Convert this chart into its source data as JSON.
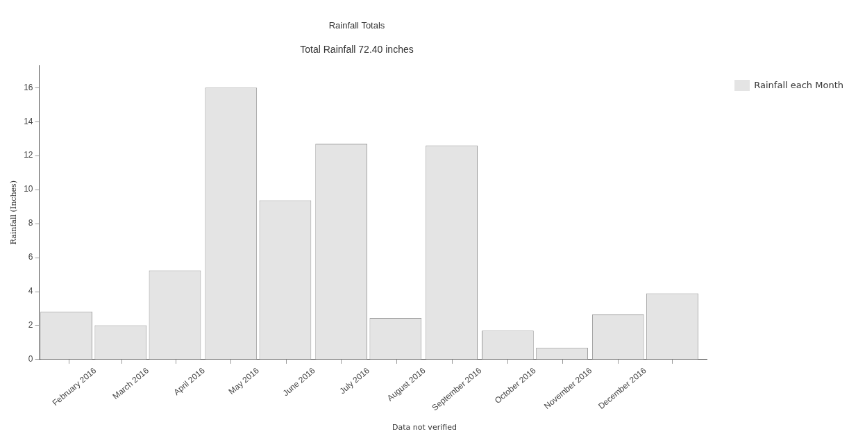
{
  "chart_data": {
    "type": "bar",
    "title": "Rainfall Totals",
    "subtitle": "Total Rainfall 72.40 inches",
    "ylabel": "Rainfall (Inches)",
    "x": [
      "2016-01-16",
      "2016-02-15",
      "2016-03-16",
      "2016-04-16",
      "2016-05-16",
      "2016-06-16",
      "2016-07-16",
      "2016-08-16",
      "2016-09-16",
      "2016-10-16",
      "2016-11-16",
      "2016-12-16"
    ],
    "series": [
      {
        "name": "Rainfall each Month",
        "color": "#e4e4e4",
        "values": [
          2.83,
          2.02,
          5.25,
          16.0,
          9.37,
          12.7,
          2.45,
          12.6,
          1.7,
          0.7,
          2.65,
          3.9
        ]
      }
    ],
    "xlim": [
      "2016-01-01",
      "2017-01-04"
    ],
    "xticks": [
      {
        "value": "2016-02-01",
        "label": "February 2016"
      },
      {
        "value": "2016-03-01",
        "label": "March 2016"
      },
      {
        "value": "2016-04-01",
        "label": "April 2016"
      },
      {
        "value": "2016-05-01",
        "label": "May 2016"
      },
      {
        "value": "2016-06-01",
        "label": "June 2016"
      },
      {
        "value": "2016-07-01",
        "label": "July 2016"
      },
      {
        "value": "2016-08-01",
        "label": "August 2016"
      },
      {
        "value": "2016-09-01",
        "label": "September 2016"
      },
      {
        "value": "2016-10-01",
        "label": "October 2016"
      },
      {
        "value": "2016-11-01",
        "label": "November 2016"
      },
      {
        "value": "2016-12-01",
        "label": "December 2016"
      }
    ],
    "ylim": [
      0,
      17.3
    ],
    "yticks": [
      0,
      2,
      4,
      6,
      8,
      10,
      12,
      14,
      16
    ],
    "grid": false,
    "legend": "top right",
    "annotations": [
      "Data not verified"
    ]
  }
}
